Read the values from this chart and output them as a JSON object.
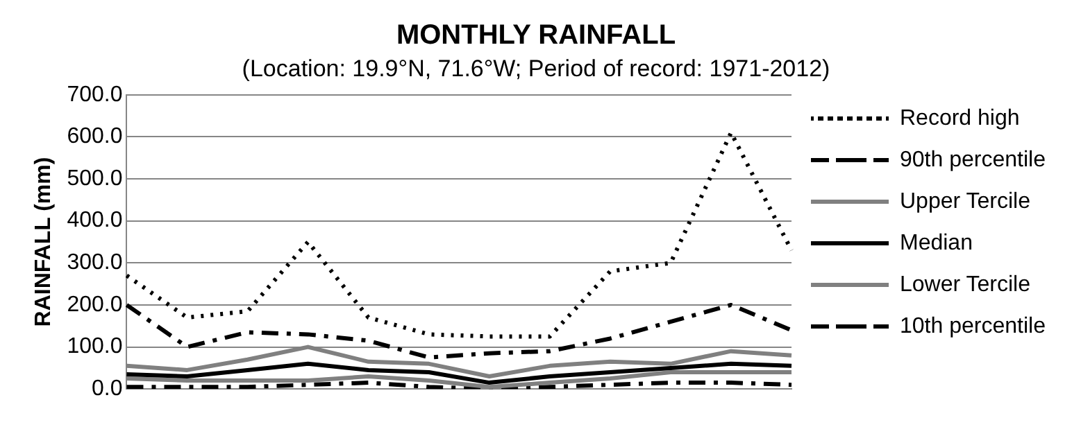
{
  "chart_data": {
    "type": "line",
    "title": "MONTHLY RAINFALL",
    "subtitle": "(Location: 19.9°N, 71.6°W; Period of record: 1971-2012)",
    "ylabel": "RAINFALL (mm)",
    "categories": [
      null,
      null,
      null,
      null,
      null,
      null,
      null,
      null,
      null,
      null,
      null,
      null
    ],
    "ylim": [
      0,
      700
    ],
    "yticks": [
      {
        "value": 0,
        "label": "0.0"
      },
      {
        "value": 100,
        "label": "100.0"
      },
      {
        "value": 200,
        "label": "200.0"
      },
      {
        "value": 300,
        "label": "300.0"
      },
      {
        "value": 400,
        "label": "400.0"
      },
      {
        "value": 500,
        "label": "500.0"
      },
      {
        "value": 600,
        "label": "600.0"
      },
      {
        "value": 700,
        "label": "700.0"
      }
    ],
    "grid": "y",
    "legend": "right",
    "marker": "none",
    "series": [
      {
        "name": "Record high",
        "color": "#000000",
        "line_style": "dotted",
        "values": [
          270,
          170,
          185,
          350,
          170,
          130,
          125,
          125,
          280,
          300,
          610,
          330
        ]
      },
      {
        "name": "90th percentile",
        "color": "#000000",
        "line_style": "dashed",
        "values": [
          200,
          100,
          135,
          130,
          115,
          75,
          85,
          90,
          120,
          160,
          200,
          140
        ]
      },
      {
        "name": "Upper Tercile",
        "color": "#808080",
        "line_style": "solid",
        "values": [
          55,
          45,
          70,
          100,
          65,
          60,
          30,
          55,
          65,
          60,
          90,
          80
        ]
      },
      {
        "name": "Median",
        "color": "#000000",
        "line_style": "solid",
        "values": [
          35,
          30,
          45,
          60,
          45,
          40,
          15,
          30,
          40,
          50,
          60,
          55
        ]
      },
      {
        "name": "Lower Tercile",
        "color": "#808080",
        "line_style": "solid",
        "values": [
          25,
          20,
          20,
          20,
          30,
          20,
          5,
          15,
          25,
          40,
          40,
          40
        ]
      },
      {
        "name": "10th percentile",
        "color": "#000000",
        "line_style": "dashed",
        "values": [
          5,
          5,
          5,
          10,
          15,
          5,
          0,
          5,
          10,
          15,
          15,
          10
        ]
      }
    ]
  }
}
